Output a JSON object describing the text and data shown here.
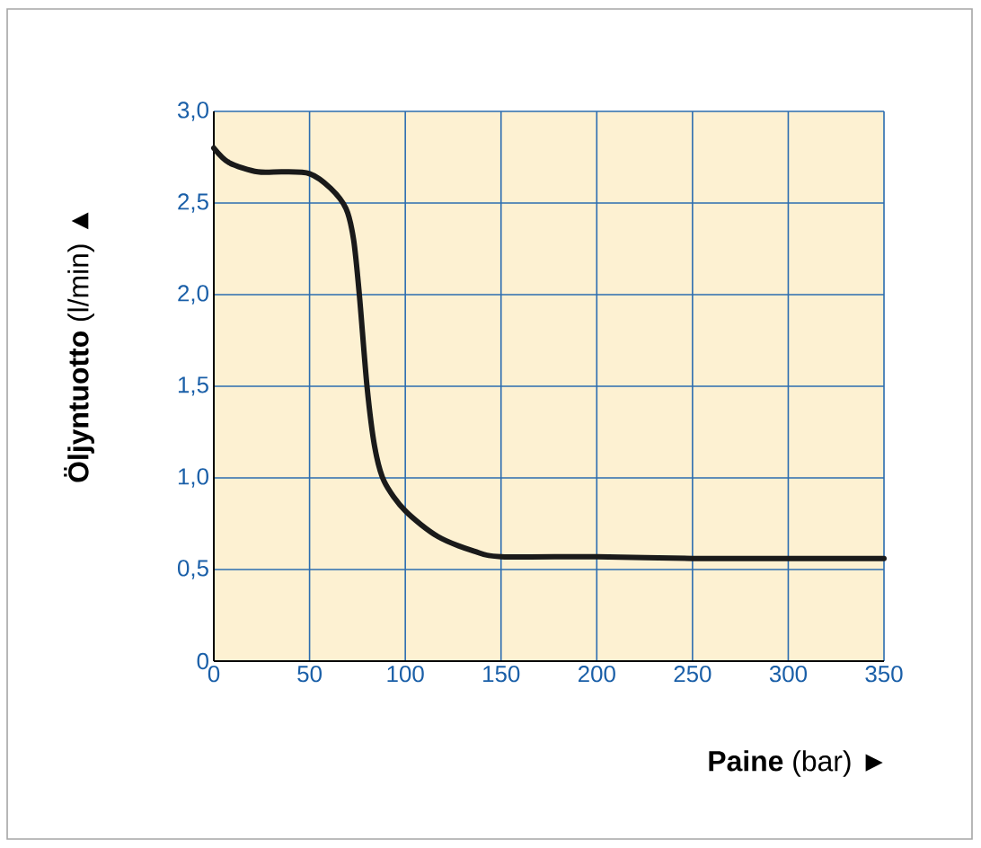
{
  "chart_data": {
    "type": "line",
    "xlabel": "**Paine** (bar) ►",
    "ylabel": "**Öljyntuotto** (l/min) ▲",
    "x": [
      0,
      8,
      23,
      36,
      50,
      61,
      69,
      73,
      76,
      80,
      84,
      89,
      100,
      117,
      136,
      150,
      200,
      250,
      300,
      350
    ],
    "series": [
      {
        "color": "#1a1a1a",
        "values": [
          2.8,
          2.72,
          2.67,
          2.67,
          2.66,
          2.58,
          2.47,
          2.3,
          2.0,
          1.5,
          1.17,
          0.98,
          0.82,
          0.68,
          0.6,
          0.57,
          0.57,
          0.56,
          0.56,
          0.56
        ]
      }
    ],
    "xlim": [
      0,
      350
    ],
    "ylim": [
      0,
      3
    ],
    "xticks": [
      0,
      50,
      100,
      150,
      200,
      250,
      300,
      350
    ],
    "yticks": [
      0,
      {
        "value": 0.5,
        "label": "0,5"
      },
      {
        "value": 1,
        "label": "1,0"
      },
      {
        "value": 1.5,
        "label": "1,5"
      },
      {
        "value": 2,
        "label": "2,0"
      },
      {
        "value": 2.5,
        "label": "2,5"
      },
      {
        "value": 3,
        "label": "3,0"
      }
    ],
    "grid": true,
    "marker": "none",
    "line_style": "solid"
  }
}
